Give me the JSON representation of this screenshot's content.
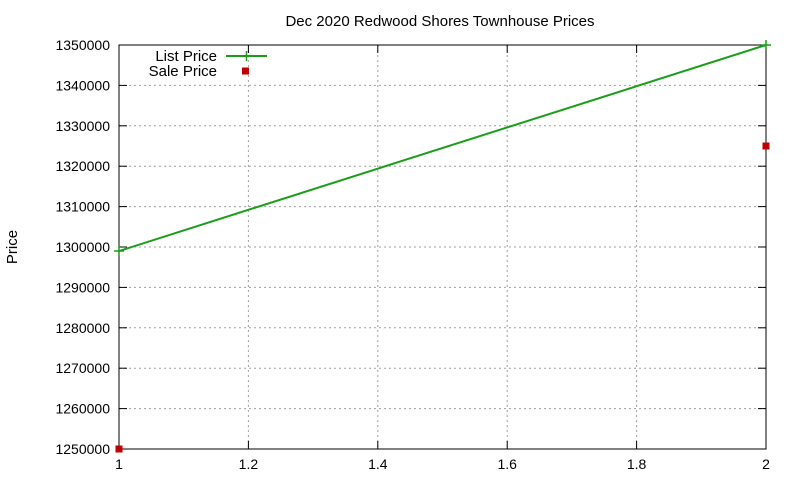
{
  "chart_data": {
    "type": "line",
    "title": "Dec 2020 Redwood Shores Townhouse Prices",
    "xlabel": "",
    "ylabel": "Price",
    "xlim": [
      1,
      2
    ],
    "ylim": [
      1250000,
      1350000
    ],
    "xticks": [
      "1",
      "1.2",
      "1.4",
      "1.6",
      "1.8",
      "2"
    ],
    "yticks": [
      "1250000",
      "1260000",
      "1270000",
      "1280000",
      "1290000",
      "1300000",
      "1310000",
      "1320000",
      "1330000",
      "1340000",
      "1350000"
    ],
    "grid": true,
    "legend_position": "top-left",
    "series": [
      {
        "name": "List Price",
        "style": "line-plus",
        "color": "#1a9e1a",
        "x": [
          1,
          2
        ],
        "y": [
          1299000,
          1350000
        ]
      },
      {
        "name": "Sale Price",
        "style": "square-points",
        "color": "#c00000",
        "x": [
          1,
          2
        ],
        "y": [
          1250000,
          1325000
        ]
      }
    ]
  }
}
